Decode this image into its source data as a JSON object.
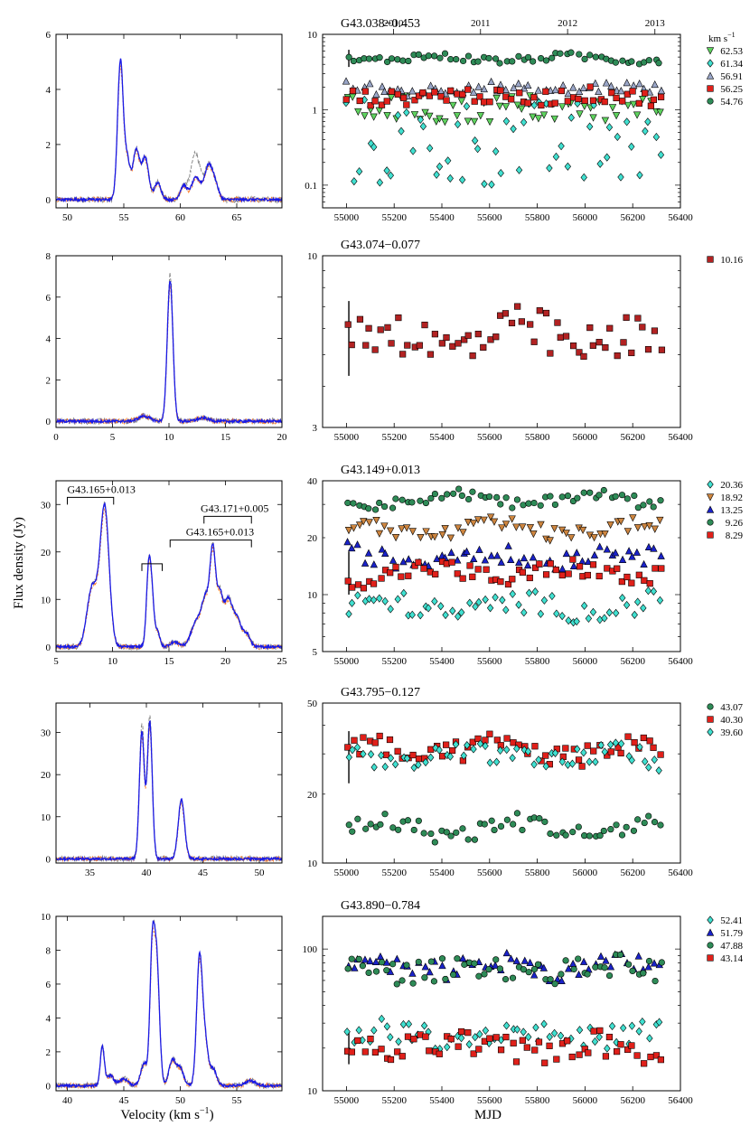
{
  "figure": {
    "ylabel": "Flux density (Jy)",
    "xlabel_left": "Velocity (km s",
    "xlabel_left_sup": "−1",
    "xlabel_left_end": ")",
    "xlabel_right": "MJD"
  },
  "chart_data": [
    {
      "source": "G43.038−0.453",
      "spectrum": {
        "type": "line",
        "xlim": [
          49,
          69
        ],
        "ylim": [
          -0.3,
          6
        ],
        "xticks": [
          50,
          55,
          60,
          65
        ],
        "yticks": [
          0,
          2,
          4,
          6
        ],
        "peaks": [
          [
            54.7,
            5.0,
            0.25
          ],
          [
            55.3,
            1.4,
            0.25
          ],
          [
            56.1,
            1.8,
            0.3
          ],
          [
            56.9,
            1.5,
            0.3
          ],
          [
            58.0,
            0.6,
            0.3
          ],
          [
            60.3,
            0.5,
            0.3
          ],
          [
            61.4,
            0.8,
            0.4
          ],
          [
            62.5,
            1.2,
            0.35
          ],
          [
            63.1,
            0.5,
            0.3
          ]
        ],
        "grey_peaks": [
          [
            61.3,
            1.7,
            0.4
          ],
          [
            55.8,
            0.9,
            0.3
          ]
        ]
      },
      "timeseries": {
        "type": "scatter",
        "xlim": [
          54900,
          56400
        ],
        "ylim": [
          0.05,
          10
        ],
        "log": true,
        "xticks": [
          55000,
          55200,
          55400,
          55600,
          55800,
          56000,
          56200,
          56400
        ],
        "yticks": [
          0.1,
          1,
          10
        ],
        "years": [
          {
            "label": "2010",
            "mjd": 55197
          },
          {
            "label": "2011",
            "mjd": 55562
          },
          {
            "label": "2012",
            "mjd": 55927
          },
          {
            "label": "2013",
            "mjd": 56293
          }
        ],
        "legend_title": "km s",
        "legend_title_sup": "−1",
        "series": [
          {
            "name": "62.53",
            "marker": "tri-down",
            "color": "#5fd35f",
            "level": 1.0,
            "scatter": 0.18
          },
          {
            "name": "61.34",
            "marker": "diamond",
            "color": "#40e0d0",
            "level": 0.35,
            "scatter": 0.6
          },
          {
            "name": "56.91",
            "marker": "tri-up",
            "color": "#9aa6c8",
            "level": 1.9,
            "scatter": 0.08
          },
          {
            "name": "56.25",
            "marker": "square",
            "color": "#e0201a",
            "level": 1.5,
            "scatter": 0.1
          },
          {
            "name": "54.76",
            "marker": "circle",
            "color": "#2e8b57",
            "level": 4.8,
            "scatter": 0.05
          }
        ]
      }
    },
    {
      "source": "G43.074−0.077",
      "spectrum": {
        "type": "line",
        "xlim": [
          0,
          20
        ],
        "ylim": [
          -0.3,
          8
        ],
        "xticks": [
          0,
          5,
          10,
          15,
          20
        ],
        "yticks": [
          0,
          2,
          4,
          6,
          8
        ],
        "peaks": [
          [
            10.1,
            6.8,
            0.25
          ],
          [
            7.8,
            0.25,
            0.5
          ],
          [
            13.0,
            0.15,
            0.5
          ]
        ],
        "grey_peaks": [
          [
            10.1,
            7.1,
            0.25
          ]
        ]
      },
      "timeseries": {
        "type": "scatter",
        "xlim": [
          54900,
          56400
        ],
        "ylim": [
          3,
          10
        ],
        "log": true,
        "xticks": [
          55000,
          55200,
          55400,
          55600,
          55800,
          56000,
          56200,
          56400
        ],
        "yticks": [
          3,
          10
        ],
        "series": [
          {
            "name": "10.16",
            "marker": "square",
            "color": "#b22222",
            "level": 5.6,
            "scatter": 0.07
          }
        ]
      }
    },
    {
      "source": "G43.149+0.013",
      "spectrum": {
        "type": "line",
        "xlim": [
          5,
          25
        ],
        "ylim": [
          -1,
          35
        ],
        "xticks": [
          5,
          10,
          15,
          20,
          25
        ],
        "yticks": [
          0,
          10,
          20,
          30
        ],
        "peaks": [
          [
            8.2,
            12.5,
            0.45
          ],
          [
            9.3,
            29.5,
            0.4
          ],
          [
            13.2,
            15.5,
            0.2
          ],
          [
            13.5,
            9.0,
            0.2
          ],
          [
            14.0,
            3.0,
            0.2
          ],
          [
            15.5,
            1.0,
            0.4
          ],
          [
            17.5,
            5.5,
            0.5
          ],
          [
            18.3,
            9.0,
            0.35
          ],
          [
            18.9,
            19.0,
            0.25
          ],
          [
            19.5,
            10.0,
            0.25
          ],
          [
            20.2,
            9.5,
            0.35
          ],
          [
            21.0,
            6.0,
            0.4
          ],
          [
            21.9,
            2.5,
            0.3
          ]
        ],
        "grey_peaks": [],
        "annotations": [
          {
            "text": "G43.165+0.013",
            "x1": 6.0,
            "x2": 10.1,
            "y": 31.5,
            "label_x": 6.0
          },
          {
            "text": "",
            "x1": 12.6,
            "x2": 14.4,
            "y": 17.5,
            "label_x": 12.6
          },
          {
            "text": "G43.165+0.013",
            "x1": 15.1,
            "x2": 22.3,
            "y": 22.5,
            "label_x": 16.5
          },
          {
            "text": "G43.171+0.005",
            "x1": 18.1,
            "x2": 22.3,
            "y": 27.5,
            "label_x": 17.8
          }
        ]
      },
      "timeseries": {
        "type": "scatter",
        "xlim": [
          54900,
          56400
        ],
        "ylim": [
          5,
          40
        ],
        "log": true,
        "xticks": [
          55000,
          55200,
          55400,
          55600,
          55800,
          56000,
          56200,
          56400
        ],
        "yticks": [
          5,
          10,
          20,
          40
        ],
        "series": [
          {
            "name": "20.36",
            "marker": "diamond",
            "color": "#40e0d0",
            "level": 8.6,
            "scatter": 0.06
          },
          {
            "name": "18.92",
            "marker": "tri-down",
            "color": "#cd853f",
            "level": 22.0,
            "scatter": 0.04
          },
          {
            "name": "13.25",
            "marker": "tri-up",
            "color": "#1a22c8",
            "level": 16.0,
            "scatter": 0.05
          },
          {
            "name": "9.26",
            "marker": "circle",
            "color": "#2e8b57",
            "level": 32.0,
            "scatter": 0.03
          },
          {
            "name": "8.29",
            "marker": "square",
            "color": "#e0201a",
            "level": 13.0,
            "scatter": 0.05
          }
        ]
      }
    },
    {
      "source": "G43.795−0.127",
      "spectrum": {
        "type": "line",
        "xlim": [
          32,
          52
        ],
        "ylim": [
          -1,
          37
        ],
        "xticks": [
          35,
          40,
          45,
          50
        ],
        "yticks": [
          0,
          10,
          20,
          30
        ],
        "peaks": [
          [
            39.6,
            30.0,
            0.22
          ],
          [
            40.3,
            32.5,
            0.22
          ],
          [
            43.1,
            14.0,
            0.28
          ]
        ],
        "grey_peaks": [
          [
            39.6,
            32.5,
            0.2
          ],
          [
            40.3,
            34.5,
            0.2
          ]
        ]
      },
      "timeseries": {
        "type": "scatter",
        "xlim": [
          54900,
          56400
        ],
        "ylim": [
          10,
          50
        ],
        "log": true,
        "xticks": [
          55000,
          55200,
          55400,
          55600,
          55800,
          56000,
          56200,
          56400
        ],
        "yticks": [
          10,
          20,
          50
        ],
        "series": [
          {
            "name": "43.07",
            "marker": "circle",
            "color": "#2e8b57",
            "level": 14.2,
            "scatter": 0.04
          },
          {
            "name": "40.30",
            "marker": "square",
            "color": "#e0201a",
            "level": 31.0,
            "scatter": 0.05
          },
          {
            "name": "39.60",
            "marker": "diamond",
            "color": "#40e0d0",
            "level": 29.0,
            "scatter": 0.05
          }
        ]
      }
    },
    {
      "source": "G43.890−0.784",
      "spectrum": {
        "type": "line",
        "xlim": [
          39,
          59
        ],
        "ylim": [
          -0.3,
          10
        ],
        "xticks": [
          40,
          45,
          50,
          55
        ],
        "yticks": [
          0,
          2,
          4,
          6,
          8,
          10
        ],
        "peaks": [
          [
            43.1,
            2.3,
            0.18
          ],
          [
            43.8,
            0.6,
            0.3
          ],
          [
            45.0,
            0.4,
            0.4
          ],
          [
            46.8,
            1.3,
            0.3
          ],
          [
            47.5,
            6.8,
            0.2
          ],
          [
            47.9,
            7.5,
            0.25
          ],
          [
            49.3,
            1.5,
            0.3
          ],
          [
            50.0,
            1.0,
            0.3
          ],
          [
            51.7,
            7.5,
            0.25
          ],
          [
            52.2,
            2.5,
            0.25
          ],
          [
            52.9,
            1.0,
            0.3
          ],
          [
            56.2,
            0.3,
            0.4
          ]
        ],
        "grey_peaks": [
          [
            47.8,
            8.6,
            0.22
          ],
          [
            51.7,
            7.8,
            0.25
          ]
        ]
      },
      "timeseries": {
        "type": "scatter",
        "xlim": [
          54900,
          56400
        ],
        "ylim": [
          10,
          170
        ],
        "log": true,
        "xticks": [
          55000,
          55200,
          55400,
          55600,
          55800,
          56000,
          56200,
          56400
        ],
        "yticks": [
          10,
          100
        ],
        "series": [
          {
            "name": "52.41",
            "marker": "diamond",
            "color": "#40e0d0",
            "level": 25.0,
            "scatter": 0.08
          },
          {
            "name": "51.79",
            "marker": "tri-up",
            "color": "#1a22c8",
            "level": 75.0,
            "scatter": 0.08
          },
          {
            "name": "47.88",
            "marker": "circle",
            "color": "#2e8b57",
            "level": 72.0,
            "scatter": 0.08
          },
          {
            "name": "43.14",
            "marker": "square",
            "color": "#e0201a",
            "level": 20.0,
            "scatter": 0.1
          }
        ]
      }
    }
  ]
}
